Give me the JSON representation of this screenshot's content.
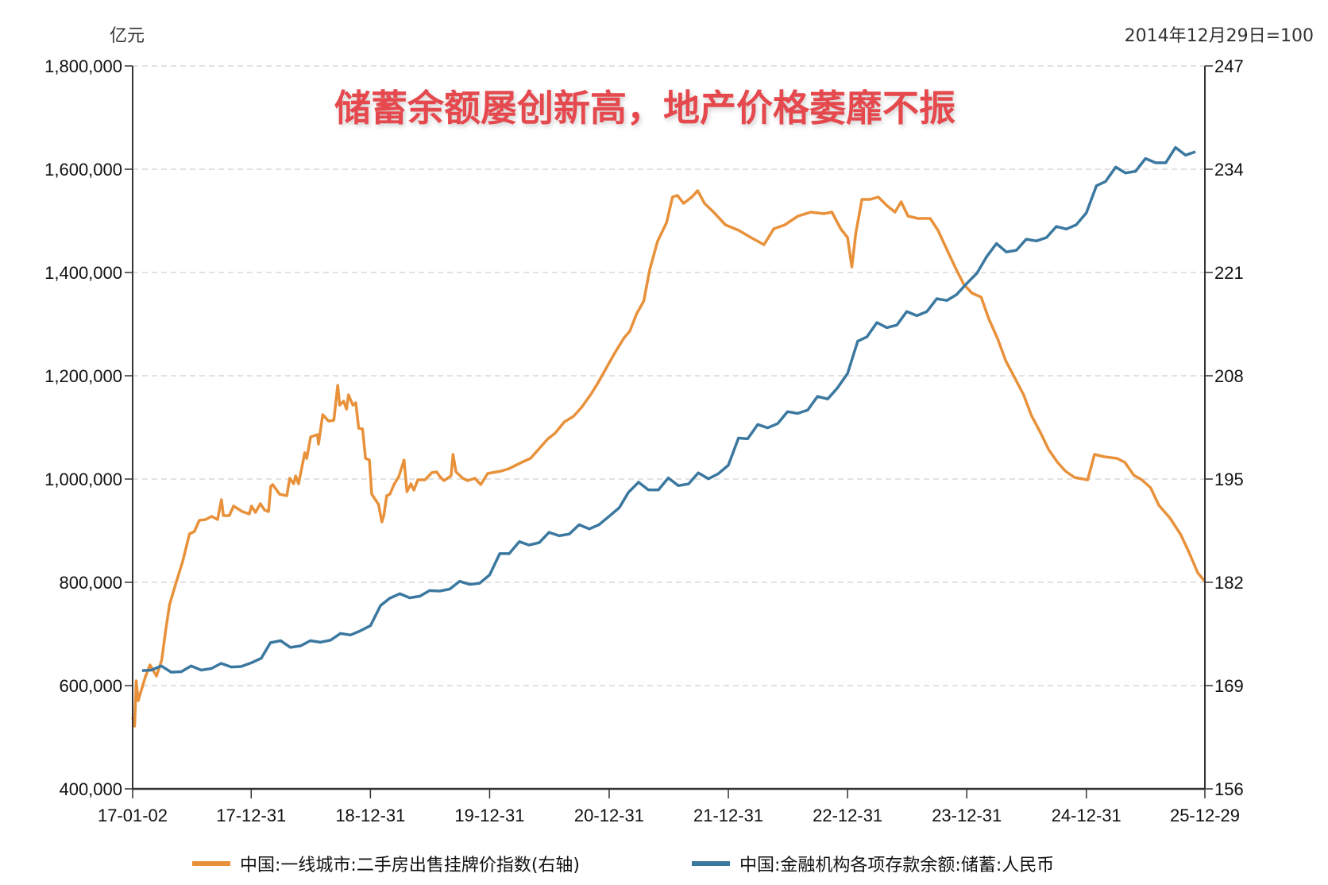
{
  "chart_data": {
    "type": "line",
    "title": "储蓄余额屡创新高，地产价格萎靡不振",
    "left_axis": {
      "unit": "亿元",
      "ylim": [
        400000,
        1800000
      ],
      "ticks": [
        "400,000",
        "600,000",
        "800,000",
        "1,000,000",
        "1,200,000",
        "1,400,000",
        "1,600,000",
        "1,800,000"
      ],
      "tick_values": [
        400000,
        600000,
        800000,
        1000000,
        1200000,
        1400000,
        1600000,
        1800000
      ]
    },
    "right_axis": {
      "unit": "2014年12月29日=100",
      "ylim": [
        156,
        247
      ],
      "ticks": [
        "156",
        "169",
        "182",
        "195",
        "208",
        "221",
        "234",
        "247"
      ],
      "tick_values": [
        156,
        169,
        182,
        195,
        208,
        221,
        234,
        247
      ]
    },
    "x_axis": {
      "range": [
        "2017-01-02",
        "2025-12-29"
      ],
      "ticks": [
        "17-01-02",
        "17-12-31",
        "18-12-31",
        "19-12-31",
        "20-12-31",
        "21-12-31",
        "22-12-31",
        "23-12-31",
        "24-12-31",
        "25-12-29"
      ],
      "tick_dates": [
        "2017-01-02",
        "2017-12-31",
        "2018-12-31",
        "2019-12-31",
        "2020-12-31",
        "2021-12-31",
        "2022-12-31",
        "2023-12-31",
        "2024-12-31",
        "2025-12-29"
      ]
    },
    "grid": "horizontal-dashed",
    "legend_placement": "bottom",
    "series": [
      {
        "name": "中国:一线城市:二手房出售挂牌价指数(右轴)",
        "axis": "right",
        "color": "#e8913a",
        "points": [
          [
            "2017-01-02",
            165.0
          ],
          [
            "2017-01-08",
            163.9
          ],
          [
            "2017-01-13",
            169.6
          ],
          [
            "2017-01-19",
            167.1
          ],
          [
            "2017-02-10",
            170.1
          ],
          [
            "2017-02-24",
            171.6
          ],
          [
            "2017-03-16",
            170.2
          ],
          [
            "2017-04-01",
            172.2
          ],
          [
            "2017-04-13",
            175.9
          ],
          [
            "2017-04-25",
            179.2
          ],
          [
            "2017-05-13",
            181.7
          ],
          [
            "2017-06-04",
            184.6
          ],
          [
            "2017-06-25",
            188.1
          ],
          [
            "2017-07-10",
            188.4
          ],
          [
            "2017-07-25",
            189.8
          ],
          [
            "2017-08-13",
            189.9
          ],
          [
            "2017-09-01",
            190.3
          ],
          [
            "2017-09-19",
            189.9
          ],
          [
            "2017-10-01",
            192.4
          ],
          [
            "2017-10-07",
            190.4
          ],
          [
            "2017-10-25",
            190.4
          ],
          [
            "2017-11-07",
            191.6
          ],
          [
            "2017-12-04",
            190.9
          ],
          [
            "2017-12-25",
            190.6
          ],
          [
            "2018-01-01",
            191.6
          ],
          [
            "2018-01-13",
            190.8
          ],
          [
            "2018-01-28",
            191.9
          ],
          [
            "2018-02-10",
            191.1
          ],
          [
            "2018-02-22",
            190.9
          ],
          [
            "2018-03-01",
            194.1
          ],
          [
            "2018-03-07",
            194.3
          ],
          [
            "2018-03-28",
            193.1
          ],
          [
            "2018-04-19",
            192.9
          ],
          [
            "2018-04-28",
            195.1
          ],
          [
            "2018-05-10",
            194.4
          ],
          [
            "2018-05-16",
            195.4
          ],
          [
            "2018-05-25",
            194.4
          ],
          [
            "2018-06-13",
            198.3
          ],
          [
            "2018-06-19",
            197.6
          ],
          [
            "2018-07-01",
            200.3
          ],
          [
            "2018-07-22",
            200.6
          ],
          [
            "2018-07-25",
            199.4
          ],
          [
            "2018-08-07",
            203.1
          ],
          [
            "2018-08-25",
            202.3
          ],
          [
            "2018-09-10",
            202.4
          ],
          [
            "2018-09-22",
            206.8
          ],
          [
            "2018-09-28",
            204.3
          ],
          [
            "2018-10-10",
            204.8
          ],
          [
            "2018-10-19",
            203.8
          ],
          [
            "2018-10-25",
            205.6
          ],
          [
            "2018-11-07",
            204.3
          ],
          [
            "2018-11-16",
            204.6
          ],
          [
            "2018-11-25",
            201.4
          ],
          [
            "2018-12-07",
            201.3
          ],
          [
            "2018-12-16",
            197.6
          ],
          [
            "2018-12-28",
            197.4
          ],
          [
            "2019-01-04",
            193.1
          ],
          [
            "2019-01-25",
            191.8
          ],
          [
            "2019-02-04",
            189.6
          ],
          [
            "2019-02-10",
            190.4
          ],
          [
            "2019-02-19",
            192.9
          ],
          [
            "2019-03-01",
            193.1
          ],
          [
            "2019-03-13",
            194.3
          ],
          [
            "2019-03-28",
            195.3
          ],
          [
            "2019-04-13",
            197.4
          ],
          [
            "2019-04-22",
            193.4
          ],
          [
            "2019-05-04",
            194.4
          ],
          [
            "2019-05-13",
            193.6
          ],
          [
            "2019-05-25",
            194.9
          ],
          [
            "2019-06-16",
            194.9
          ],
          [
            "2019-07-07",
            195.8
          ],
          [
            "2019-07-22",
            195.9
          ],
          [
            "2019-08-01",
            195.3
          ],
          [
            "2019-08-13",
            194.8
          ],
          [
            "2019-09-04",
            195.4
          ],
          [
            "2019-09-10",
            198.1
          ],
          [
            "2019-09-19",
            195.9
          ],
          [
            "2019-10-10",
            195.1
          ],
          [
            "2019-10-25",
            194.8
          ],
          [
            "2019-11-16",
            195.1
          ],
          [
            "2019-12-04",
            194.3
          ],
          [
            "2019-12-25",
            195.7
          ],
          [
            "2020-02-04",
            196.0
          ],
          [
            "2020-02-28",
            196.3
          ],
          [
            "2020-04-07",
            197.1
          ],
          [
            "2020-05-04",
            197.6
          ],
          [
            "2020-05-28",
            198.7
          ],
          [
            "2020-06-25",
            200.0
          ],
          [
            "2020-07-19",
            200.8
          ],
          [
            "2020-08-16",
            202.2
          ],
          [
            "2020-09-13",
            202.9
          ],
          [
            "2020-10-07",
            204.0
          ],
          [
            "2020-11-04",
            205.6
          ],
          [
            "2020-11-28",
            207.2
          ],
          [
            "2020-12-28",
            209.4
          ],
          [
            "2021-01-19",
            211.0
          ],
          [
            "2021-02-15",
            212.8
          ],
          [
            "2021-03-04",
            213.6
          ],
          [
            "2021-03-25",
            215.8
          ],
          [
            "2021-04-16",
            217.4
          ],
          [
            "2021-05-04",
            221.3
          ],
          [
            "2021-05-28",
            224.9
          ],
          [
            "2021-06-25",
            227.3
          ],
          [
            "2021-07-13",
            230.5
          ],
          [
            "2021-07-28",
            230.7
          ],
          [
            "2021-08-16",
            229.7
          ],
          [
            "2021-09-10",
            230.5
          ],
          [
            "2021-09-28",
            231.3
          ],
          [
            "2021-10-19",
            229.7
          ],
          [
            "2021-11-16",
            228.6
          ],
          [
            "2021-12-22",
            227.0
          ],
          [
            "2022-02-01",
            226.3
          ],
          [
            "2022-03-10",
            225.4
          ],
          [
            "2022-04-19",
            224.5
          ],
          [
            "2022-05-19",
            226.5
          ],
          [
            "2022-06-22",
            227.0
          ],
          [
            "2022-08-01",
            228.1
          ],
          [
            "2022-09-10",
            228.6
          ],
          [
            "2022-10-19",
            228.4
          ],
          [
            "2022-11-13",
            228.6
          ],
          [
            "2022-12-10",
            226.5
          ],
          [
            "2022-12-31",
            225.4
          ],
          [
            "2023-01-13",
            221.7
          ],
          [
            "2023-01-25",
            225.9
          ],
          [
            "2023-02-13",
            230.2
          ],
          [
            "2023-03-10",
            230.2
          ],
          [
            "2023-04-04",
            230.5
          ],
          [
            "2023-05-01",
            229.4
          ],
          [
            "2023-05-25",
            228.6
          ],
          [
            "2023-06-13",
            229.9
          ],
          [
            "2023-07-04",
            228.1
          ],
          [
            "2023-08-04",
            227.8
          ],
          [
            "2023-09-10",
            227.8
          ],
          [
            "2023-10-04",
            226.3
          ],
          [
            "2023-11-01",
            223.8
          ],
          [
            "2023-11-25",
            221.7
          ],
          [
            "2023-12-22",
            219.5
          ],
          [
            "2024-01-16",
            218.4
          ],
          [
            "2024-02-13",
            217.9
          ],
          [
            "2024-03-07",
            215.2
          ],
          [
            "2024-04-04",
            212.6
          ],
          [
            "2024-04-28",
            209.9
          ],
          [
            "2024-05-25",
            207.8
          ],
          [
            "2024-06-22",
            205.6
          ],
          [
            "2024-07-16",
            203.0
          ],
          [
            "2024-08-13",
            200.8
          ],
          [
            "2024-09-07",
            198.7
          ],
          [
            "2024-10-04",
            197.1
          ],
          [
            "2024-10-28",
            196.0
          ],
          [
            "2024-11-25",
            195.2
          ],
          [
            "2025-01-04",
            194.9
          ],
          [
            "2025-01-25",
            198.1
          ],
          [
            "2025-02-25",
            197.8
          ],
          [
            "2025-04-04",
            197.6
          ],
          [
            "2025-04-28",
            197.1
          ],
          [
            "2025-05-25",
            195.5
          ],
          [
            "2025-06-19",
            194.9
          ],
          [
            "2025-07-16",
            193.9
          ],
          [
            "2025-08-10",
            191.7
          ],
          [
            "2025-09-13",
            190.1
          ],
          [
            "2025-10-16",
            188.0
          ],
          [
            "2025-11-10",
            185.8
          ],
          [
            "2025-12-07",
            183.2
          ],
          [
            "2025-12-29",
            182.1
          ]
        ]
      },
      {
        "name": "中国:金融机构各项存款余额:储蓄:人民币",
        "axis": "left",
        "color": "#3b78a0",
        "start_month": "2017-01",
        "end_month": "2025-11",
        "monthly_values": [
          629000,
          630000,
          638000,
          626000,
          627000,
          638000,
          630000,
          633000,
          643000,
          636000,
          637000,
          644000,
          653000,
          683000,
          687000,
          674000,
          677000,
          687000,
          684000,
          688000,
          701000,
          698000,
          706000,
          716000,
          755000,
          769000,
          778000,
          770000,
          773000,
          784000,
          783000,
          787000,
          802000,
          796000,
          798000,
          814500,
          855600,
          855600,
          878700,
          872100,
          877000,
          896800,
          890200,
          893500,
          911600,
          903400,
          911600,
          928000,
          944500,
          974100,
          993900,
          979000,
          979000,
          1002100,
          987300,
          990600,
          1012000,
          1000400,
          1010300,
          1026800,
          1079400,
          1077800,
          1105700,
          1099100,
          1107400,
          1130400,
          1127100,
          1133700,
          1160000,
          1155100,
          1176500,
          1204400,
          1266900,
          1275200,
          1303100,
          1293300,
          1298200,
          1324500,
          1316300,
          1324500,
          1349200,
          1345900,
          1357400,
          1378800,
          1398600,
          1429800,
          1456100,
          1439700,
          1443000,
          1464400,
          1461100,
          1467700,
          1489100,
          1484100,
          1492300,
          1515400,
          1568000,
          1576300,
          1604200,
          1592700,
          1596000,
          1620700,
          1612400,
          1612400,
          1642100,
          1627300,
          1633800
        ]
      }
    ]
  }
}
